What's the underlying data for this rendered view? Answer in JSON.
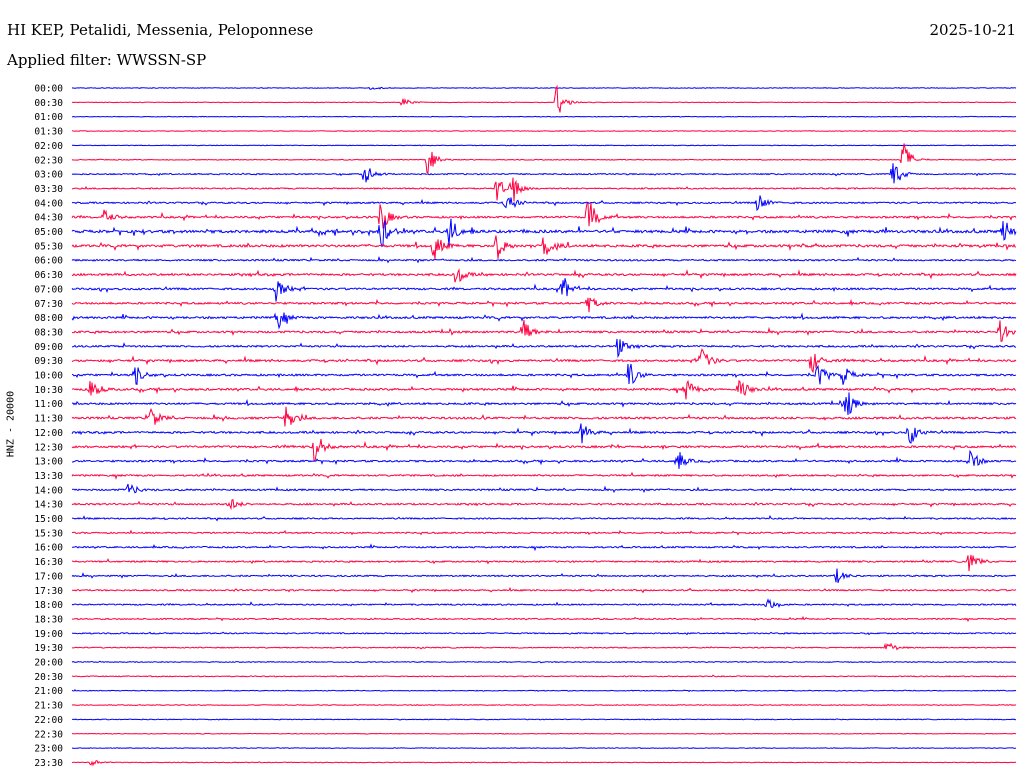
{
  "header": {
    "station": "HI KEP, Petalidi, Messenia, Peloponnese",
    "date": "2025-10-21",
    "filter_label": "Applied filter: WWSSN-SP"
  },
  "chart_data": {
    "type": "line",
    "ylabel": "HNZ - 20000",
    "row_labels": [
      "00:00",
      "00:30",
      "01:00",
      "01:30",
      "02:00",
      "02:30",
      "03:00",
      "03:30",
      "04:00",
      "04:30",
      "05:00",
      "05:30",
      "06:00",
      "06:30",
      "07:00",
      "07:30",
      "08:00",
      "08:30",
      "09:00",
      "09:30",
      "10:00",
      "10:30",
      "11:00",
      "11:30",
      "12:00",
      "12:30",
      "13:00",
      "13:30",
      "14:00",
      "14:30",
      "15:00",
      "15:30",
      "16:00",
      "16:30",
      "17:00",
      "17:30",
      "18:00",
      "18:30",
      "19:00",
      "19:30",
      "20:00",
      "20:30",
      "21:00",
      "21:30",
      "22:00",
      "22:30",
      "23:00",
      "23:30"
    ],
    "row_minutes": 30,
    "series_colors": [
      "#0000ff",
      "#ff0040"
    ],
    "activity": [
      0.05,
      0.05,
      0.06,
      0.05,
      0.06,
      0.12,
      0.28,
      0.32,
      0.42,
      0.55,
      0.85,
      0.75,
      0.45,
      0.6,
      0.55,
      0.55,
      0.6,
      0.55,
      0.5,
      0.6,
      0.55,
      0.6,
      0.55,
      0.6,
      0.55,
      0.6,
      0.5,
      0.45,
      0.45,
      0.45,
      0.35,
      0.35,
      0.4,
      0.4,
      0.38,
      0.35,
      0.32,
      0.3,
      0.28,
      0.2,
      0.15,
      0.15,
      0.12,
      0.1,
      0.1,
      0.07,
      0.05,
      0.06
    ],
    "events": [
      {
        "row": 0,
        "minute": 9.5,
        "amplitude": 0.15
      },
      {
        "row": 1,
        "minute": 10.5,
        "amplitude": 0.3
      },
      {
        "row": 1,
        "minute": 15.4,
        "amplitude": 1.3
      },
      {
        "row": 5,
        "minute": 11.3,
        "amplitude": 1.0
      },
      {
        "row": 5,
        "minute": 26.4,
        "amplitude": 1.4
      },
      {
        "row": 6,
        "minute": 9.3,
        "amplitude": 0.8
      },
      {
        "row": 6,
        "minute": 26.1,
        "amplitude": 1.2
      },
      {
        "row": 7,
        "minute": 13.5,
        "amplitude": 0.9
      },
      {
        "row": 7,
        "minute": 14.0,
        "amplitude": 1.1
      },
      {
        "row": 8,
        "minute": 13.8,
        "amplitude": 0.8
      },
      {
        "row": 8,
        "minute": 21.8,
        "amplitude": 0.7
      },
      {
        "row": 9,
        "minute": 1.0,
        "amplitude": 0.6
      },
      {
        "row": 9,
        "minute": 9.8,
        "amplitude": 1.2
      },
      {
        "row": 9,
        "minute": 16.4,
        "amplitude": 1.4
      },
      {
        "row": 10,
        "minute": 9.8,
        "amplitude": 1.3
      },
      {
        "row": 10,
        "minute": 12.0,
        "amplitude": 1.0
      },
      {
        "row": 10,
        "minute": 29.6,
        "amplitude": 0.9
      },
      {
        "row": 11,
        "minute": 11.5,
        "amplitude": 1.0
      },
      {
        "row": 11,
        "minute": 13.5,
        "amplitude": 0.9
      },
      {
        "row": 11,
        "minute": 15.0,
        "amplitude": 0.8
      },
      {
        "row": 13,
        "minute": 12.2,
        "amplitude": 0.7
      },
      {
        "row": 14,
        "minute": 6.5,
        "amplitude": 0.9
      },
      {
        "row": 14,
        "minute": 15.6,
        "amplitude": 0.9
      },
      {
        "row": 15,
        "minute": 16.4,
        "amplitude": 0.6
      },
      {
        "row": 16,
        "minute": 6.5,
        "amplitude": 0.9
      },
      {
        "row": 17,
        "minute": 14.3,
        "amplitude": 1.1
      },
      {
        "row": 17,
        "minute": 29.5,
        "amplitude": 0.8
      },
      {
        "row": 18,
        "minute": 17.3,
        "amplitude": 0.8
      },
      {
        "row": 19,
        "minute": 20.0,
        "amplitude": 1.1
      },
      {
        "row": 19,
        "minute": 23.5,
        "amplitude": 0.9
      },
      {
        "row": 20,
        "minute": 2.0,
        "amplitude": 0.7
      },
      {
        "row": 20,
        "minute": 17.7,
        "amplitude": 1.0
      },
      {
        "row": 20,
        "minute": 23.7,
        "amplitude": 0.9
      },
      {
        "row": 20,
        "minute": 24.5,
        "amplitude": 0.7
      },
      {
        "row": 21,
        "minute": 0.6,
        "amplitude": 0.8
      },
      {
        "row": 21,
        "minute": 19.5,
        "amplitude": 0.8
      },
      {
        "row": 21,
        "minute": 21.2,
        "amplitude": 0.9
      },
      {
        "row": 22,
        "minute": 24.6,
        "amplitude": 1.1
      },
      {
        "row": 23,
        "minute": 2.5,
        "amplitude": 0.8
      },
      {
        "row": 23,
        "minute": 6.8,
        "amplitude": 1.1
      },
      {
        "row": 24,
        "minute": 16.2,
        "amplitude": 0.7
      },
      {
        "row": 24,
        "minute": 26.6,
        "amplitude": 1.0
      },
      {
        "row": 25,
        "minute": 7.7,
        "amplitude": 1.1
      },
      {
        "row": 26,
        "minute": 19.2,
        "amplitude": 0.8
      },
      {
        "row": 26,
        "minute": 28.5,
        "amplitude": 1.0
      },
      {
        "row": 28,
        "minute": 1.8,
        "amplitude": 0.5
      },
      {
        "row": 29,
        "minute": 5.0,
        "amplitude": 0.5
      },
      {
        "row": 33,
        "minute": 28.5,
        "amplitude": 0.8
      },
      {
        "row": 34,
        "minute": 24.3,
        "amplitude": 0.5
      },
      {
        "row": 36,
        "minute": 22.1,
        "amplitude": 0.4
      },
      {
        "row": 39,
        "minute": 25.9,
        "amplitude": 0.5
      },
      {
        "row": 47,
        "minute": 0.6,
        "amplitude": 0.25
      }
    ]
  }
}
